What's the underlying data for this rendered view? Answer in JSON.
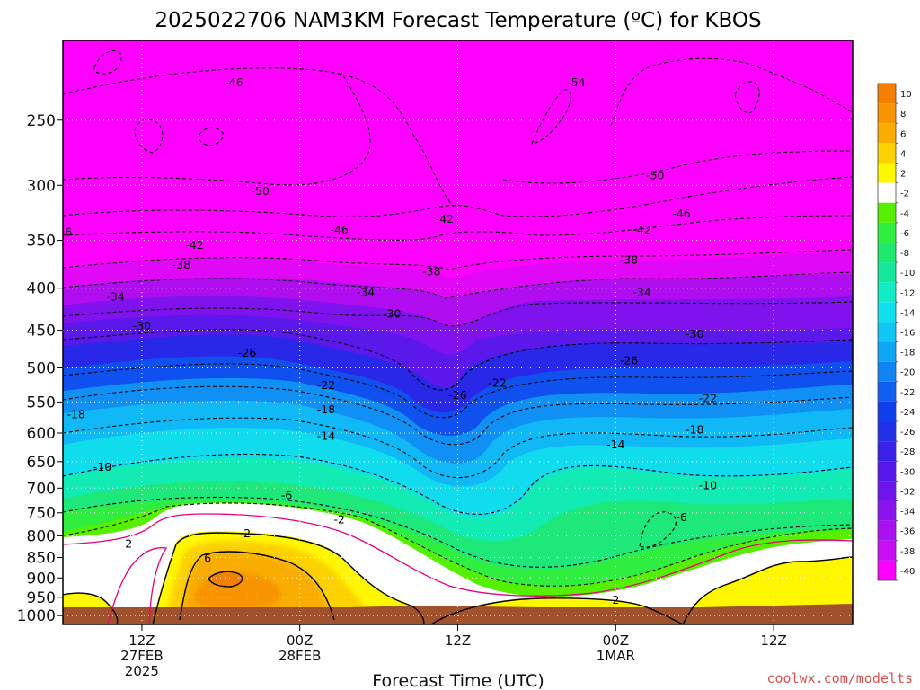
{
  "chart_data": {
    "type": "heatmap",
    "title": "2025022706 NAM3KM Forecast Temperature (ºC) for KBOS",
    "xlabel": "Forecast Time (UTC)",
    "ylabel": "",
    "credit": "coolwx.com/modelts",
    "x_ticks": [
      {
        "time": "2025-02-27T12Z",
        "lines": [
          "12Z",
          "27FEB",
          "2025"
        ]
      },
      {
        "time": "2025-02-28T00Z",
        "lines": [
          "00Z",
          "28FEB"
        ]
      },
      {
        "time": "2025-02-28T12Z",
        "lines": [
          "12Z"
        ]
      },
      {
        "time": "2025-03-01T00Z",
        "lines": [
          "00Z",
          "1MAR"
        ]
      },
      {
        "time": "2025-03-01T12Z",
        "lines": [
          "12Z"
        ]
      }
    ],
    "y_ticks": [
      250,
      300,
      350,
      400,
      450,
      500,
      550,
      600,
      650,
      700,
      750,
      800,
      850,
      900,
      950,
      1000
    ],
    "ylim_hpa": [
      1025,
      200
    ],
    "y_scale": "log-pressure",
    "colorbar": {
      "labels": [
        "10",
        "8",
        "6",
        "4",
        "2",
        "-2",
        "-4",
        "-6",
        "-8",
        "-10",
        "-12",
        "-14",
        "-16",
        "-18",
        "-20",
        "-22",
        "-24",
        "-26",
        "-28",
        "-30",
        "-32",
        "-34",
        "-36",
        "-38",
        "-40"
      ],
      "colors": [
        "#f57f00",
        "#f79400",
        "#f9ad00",
        "#fcd100",
        "#fff700",
        "#ffffff",
        "#55f000",
        "#30ee40",
        "#1ee86e",
        "#14e89a",
        "#0fecc6",
        "#10e0ee",
        "#10c6f5",
        "#10a6f7",
        "#1084f5",
        "#1060f0",
        "#0f3fea",
        "#2230e8",
        "#3a20e8",
        "#5418ea",
        "#7014ec",
        "#8c12ee",
        "#aa10f0",
        "#c80ef2",
        "#fe00fe"
      ]
    },
    "contour_labels": [
      {
        "time": "2025-02-27T19Z",
        "p": 225,
        "text": "-46"
      },
      {
        "time": "2025-02-28T21Z",
        "p": 225,
        "text": "-54"
      },
      {
        "time": "2025-02-27T21Z",
        "p": 305,
        "text": "-50"
      },
      {
        "time": "2025-03-01T03Z",
        "p": 292,
        "text": "-50"
      },
      {
        "time": "2025-02-27T06Z",
        "p": 342,
        "text": "-46"
      },
      {
        "time": "2025-02-28T03Z",
        "p": 340,
        "text": "-46"
      },
      {
        "time": "2025-03-01T05Z",
        "p": 325,
        "text": "-46"
      },
      {
        "time": "2025-02-28T11Z",
        "p": 330,
        "text": "-42"
      },
      {
        "time": "2025-02-27T16Z",
        "p": 355,
        "text": "-42"
      },
      {
        "time": "2025-03-01T02Z",
        "p": 340,
        "text": "-42"
      },
      {
        "time": "2025-02-27T15Z",
        "p": 375,
        "text": "-38"
      },
      {
        "time": "2025-02-28T10Z",
        "p": 382,
        "text": "-38"
      },
      {
        "time": "2025-03-01T01Z",
        "p": 370,
        "text": "-38"
      },
      {
        "time": "2025-02-27T10Z",
        "p": 410,
        "text": "-34"
      },
      {
        "time": "2025-02-28T05Z",
        "p": 405,
        "text": "-34"
      },
      {
        "time": "2025-03-01T02Z",
        "p": 405,
        "text": "-34"
      },
      {
        "time": "2025-02-27T12Z",
        "p": 445,
        "text": "-30"
      },
      {
        "time": "2025-02-28T07Z",
        "p": 430,
        "text": "-30"
      },
      {
        "time": "2025-03-01T06Z",
        "p": 455,
        "text": "-30"
      },
      {
        "time": "2025-02-27T20Z",
        "p": 480,
        "text": "-26"
      },
      {
        "time": "2025-02-28T12Z",
        "p": 540,
        "text": "-26"
      },
      {
        "time": "2025-03-01T01Z",
        "p": 490,
        "text": "-26"
      },
      {
        "time": "2025-02-28T02Z",
        "p": 525,
        "text": "-22"
      },
      {
        "time": "2025-02-28T15Z",
        "p": 522,
        "text": "-22"
      },
      {
        "time": "2025-03-01T07Z",
        "p": 545,
        "text": "-22"
      },
      {
        "time": "2025-02-27T07Z",
        "p": 570,
        "text": "-18"
      },
      {
        "time": "2025-02-28T02Z",
        "p": 562,
        "text": "-18"
      },
      {
        "time": "2025-03-01T06Z",
        "p": 595,
        "text": "-18"
      },
      {
        "time": "2025-02-28T02Z",
        "p": 605,
        "text": "-14"
      },
      {
        "time": "2025-03-01T00Z",
        "p": 620,
        "text": "-14"
      },
      {
        "time": "2025-02-27T09Z",
        "p": 660,
        "text": "-10"
      },
      {
        "time": "2025-03-01T07Z",
        "p": 695,
        "text": "-10"
      },
      {
        "time": "2025-02-27T23Z",
        "p": 715,
        "text": "-6"
      },
      {
        "time": "2025-03-01T05Z",
        "p": 760,
        "text": "-6"
      },
      {
        "time": "2025-02-28T03Z",
        "p": 765,
        "text": "-2"
      },
      {
        "time": "2025-02-27T11Z",
        "p": 818,
        "text": "2"
      },
      {
        "time": "2025-02-27T20Z",
        "p": 795,
        "text": "2"
      },
      {
        "time": "2025-03-01T00Z",
        "p": 958,
        "text": "2"
      },
      {
        "time": "2025-02-27T17Z",
        "p": 852,
        "text": "6"
      }
    ]
  }
}
